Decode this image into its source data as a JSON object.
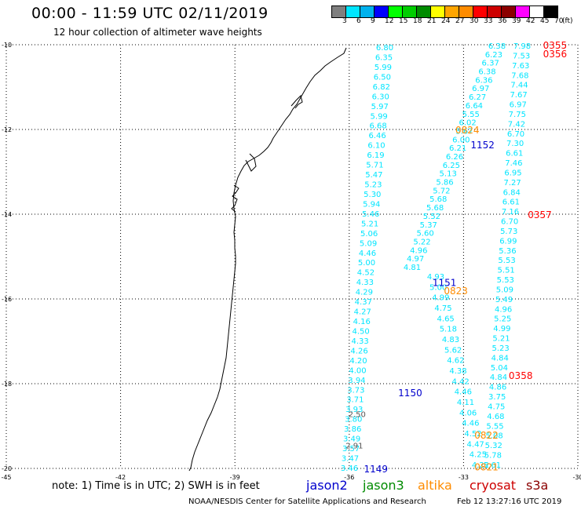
{
  "title": "00:00 - 11:59 UTC 02/11/2019",
  "subtitle": "12 hour collection of altimeter wave heights",
  "legend": {
    "colors": [
      "#7f7f7f",
      "#00e5ff",
      "#00b2ee",
      "#0000ff",
      "#00ff00",
      "#00cd00",
      "#008b00",
      "#ffff00",
      "#ffa500",
      "#ff8c00",
      "#ff0000",
      "#cd0000",
      "#8b0000",
      "#ff00ff",
      "#ffffff",
      "#000000"
    ],
    "labels": [
      "3",
      "6",
      "9",
      "12",
      "15",
      "18",
      "21",
      "24",
      "27",
      "30",
      "33",
      "36",
      "39",
      "42",
      "45",
      "70",
      "(ft)"
    ]
  },
  "axes": {
    "lat_labels": [
      "-10",
      "-12",
      "-14",
      "-16",
      "-18",
      "-20"
    ],
    "lat_values": [
      -10,
      -12,
      -14,
      -16,
      -18,
      -20
    ],
    "lon_labels": [
      "-45",
      "-42",
      "-39",
      "-36",
      "-33",
      "-30"
    ],
    "lon_values": [
      -45,
      -42,
      -39,
      -36,
      -33,
      -30
    ]
  },
  "tracks": [
    {
      "id": "a",
      "color": "#00e5ff",
      "top": {
        "x": 490,
        "y": 60
      },
      "bottom": {
        "x": 445,
        "y": 596
      },
      "values": [
        "6.80",
        "6.35",
        "5.99",
        "6.50",
        "6.82",
        "6.30",
        "5.97",
        "5.99",
        "6.68",
        "6.46",
        "6.10",
        "6.19",
        "5.71",
        "5.47",
        "5.23",
        "5.30",
        "5.94",
        "5.46",
        "5.21",
        "5.06",
        "5.09",
        "4.46",
        "5.00",
        "4.52",
        "4.33",
        "4.29",
        "4.37",
        "4.27",
        "4.16",
        "4.50",
        "4.33",
        "4.26",
        "4.20",
        "4.00",
        "3.94",
        "3.73",
        "3.71",
        "3.93",
        "3.80",
        "3.86",
        "3.49",
        "3.57",
        "3.47",
        "3.46"
      ]
    },
    {
      "id": "b",
      "color": "#00e5ff",
      "top": {
        "x": 633,
        "y": 58
      },
      "bottom": {
        "x": 525,
        "y": 340
      },
      "values": [
        "6.38",
        "6.23",
        "6.37",
        "6.38",
        "6.36",
        "6.97",
        "6.27",
        "6.64",
        "5.55",
        "6.02",
        "5.67",
        "6.00",
        "6.21",
        "6.26",
        "6.25",
        "5.13",
        "5.86",
        "5.72",
        "5.68",
        "5.68",
        "5.52",
        "5.37",
        "5.60",
        "5.22",
        "4.96",
        "4.97",
        "4.81"
      ]
    },
    {
      "id": "c",
      "color": "#00e5ff",
      "top": {
        "x": 555,
        "y": 352
      },
      "bottom": {
        "x": 612,
        "y": 592
      },
      "values": [
        "4.93",
        "5.00",
        "4.99",
        "4.75",
        "4.65",
        "5.18",
        "4.83",
        "5.62",
        "4.62",
        "4.38",
        "4.42",
        "4.46",
        "4.11",
        "4.06",
        "4.46",
        "4.52",
        "4.47",
        "4.25",
        "4.22"
      ]
    },
    {
      "id": "d",
      "color": "#00e5ff",
      "top": {
        "x": 665,
        "y": 58
      },
      "bottom": {
        "x": 627,
        "y": 592
      },
      "values": [
        "7.98",
        "7.53",
        "7.63",
        "7.68",
        "7.44",
        "7.67",
        "6.97",
        "7.75",
        "7.42",
        "6.70",
        "7.30",
        "6.61",
        "7.46",
        "6.95",
        "7.27",
        "6.84",
        "6.61",
        "7.16",
        "6.70",
        "5.73",
        "6.99",
        "5.36",
        "5.53",
        "5.51",
        "5.53",
        "5.09",
        "5.49",
        "4.96",
        "5.25",
        "4.99",
        "5.21",
        "5.23",
        "4.84",
        "5.04",
        "4.84",
        "4.86",
        "3.75",
        "4.75",
        "4.68",
        "5.55",
        "5.08",
        "5.32",
        "5.78",
        "5.61"
      ]
    }
  ],
  "gray_values": [
    {
      "text": "2.50",
      "track": "a",
      "index": 37.5
    },
    {
      "text": "2.91",
      "track": "a",
      "index": 40.7
    }
  ],
  "time_labels": [
    {
      "text": "0355",
      "color": "#ff0000",
      "lon": -30.6,
      "lat": -10.0
    },
    {
      "text": "0356",
      "color": "#ff0000",
      "lon": -30.6,
      "lat": -10.2
    },
    {
      "text": "0824",
      "color": "#ff8c00",
      "lon": -32.9,
      "lat": -12.0
    },
    {
      "text": "1152",
      "color": "#0000cd",
      "lon": -32.5,
      "lat": -12.35
    },
    {
      "text": "0357",
      "color": "#ff0000",
      "lon": -31.0,
      "lat": -14.0
    },
    {
      "text": "1151",
      "color": "#0000cd",
      "lon": -33.5,
      "lat": -15.6
    },
    {
      "text": "0823",
      "color": "#ff8c00",
      "lon": -33.2,
      "lat": -15.8
    },
    {
      "text": "0358",
      "color": "#ff0000",
      "lon": -31.5,
      "lat": -17.8
    },
    {
      "text": "1150",
      "color": "#0000cd",
      "lon": -34.4,
      "lat": -18.2
    },
    {
      "text": "0822",
      "color": "#ff8c00",
      "lon": -32.4,
      "lat": -19.2
    },
    {
      "text": "1149",
      "color": "#0000cd",
      "lon": -35.3,
      "lat": -20.0
    },
    {
      "text": "0821",
      "color": "#ff8c00",
      "lon": -32.4,
      "lat": -19.95
    }
  ],
  "note": "note: 1) Time is in UTC; 2) SWH is in feet",
  "satellites": [
    {
      "name": "jason2",
      "color": "#0000cd"
    },
    {
      "name": "jason3",
      "color": "#008b00"
    },
    {
      "name": "altika",
      "color": "#ff8c00"
    },
    {
      "name": "cryosat",
      "color": "#cd0000"
    },
    {
      "name": "s3a",
      "color": "#8b0000"
    }
  ],
  "footer": {
    "credit": "NOAA/NESDIS Center for Satellite Applications and Research",
    "timestamp": "Feb 12 13:27:16 UTC 2019"
  }
}
